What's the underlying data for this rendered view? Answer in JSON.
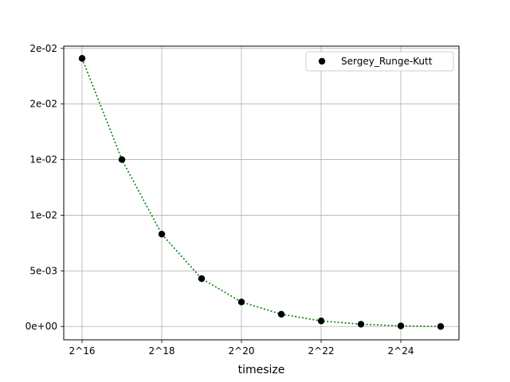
{
  "chart_data": {
    "type": "line",
    "xlabel": "timesize",
    "ylabel": "",
    "title": "",
    "x_ticks": [
      {
        "value": 16,
        "label": "2^16"
      },
      {
        "value": 18,
        "label": "2^18"
      },
      {
        "value": 20,
        "label": "2^20"
      },
      {
        "value": 22,
        "label": "2^22"
      },
      {
        "value": 24,
        "label": "2^24"
      }
    ],
    "y_ticks": [
      {
        "value": 0.0,
        "label": "0e+00"
      },
      {
        "value": 0.005,
        "label": "5e-03"
      },
      {
        "value": 0.01,
        "label": "1e-02"
      },
      {
        "value": 0.015,
        "label": "1e-02"
      },
      {
        "value": 0.02,
        "label": "2e-02"
      },
      {
        "value": 0.025,
        "label": "2e-02"
      }
    ],
    "xlim": [
      15.54,
      25.46
    ],
    "ylim": [
      -0.0012,
      0.0252
    ],
    "grid": true,
    "legend_position": "top-right",
    "series": [
      {
        "name": "Sergey_Runge-Kutt",
        "marker_color": "#000000",
        "line_color": "#008000",
        "line_style": "dotted",
        "x": [
          16,
          17,
          18,
          19,
          20,
          21,
          22,
          23,
          24,
          25
        ],
        "y": [
          0.0241,
          0.015,
          0.0083,
          0.0043,
          0.0022,
          0.0011,
          0.0005,
          0.0002,
          5e-05,
          0.0
        ]
      }
    ]
  }
}
